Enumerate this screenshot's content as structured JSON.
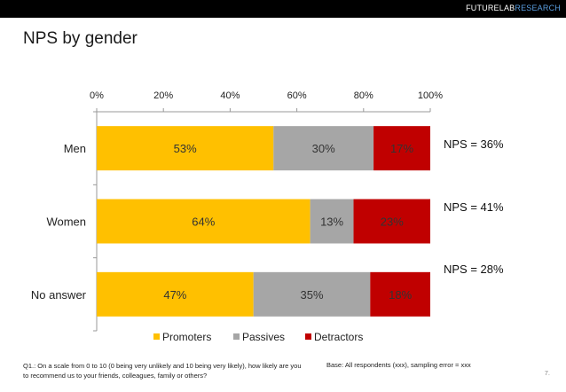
{
  "brand": {
    "part1": "FUTURELAB",
    "part2": "RESEARCH"
  },
  "title": "NPS by gender",
  "chart_data": {
    "type": "bar",
    "orientation": "horizontal",
    "stacked": true,
    "categories": [
      "Men",
      "Women",
      "No answer"
    ],
    "series": [
      {
        "name": "Promoters",
        "values": [
          53,
          64,
          47
        ],
        "labels": [
          "53%",
          "64%",
          "47%"
        ],
        "color": "#FFC000"
      },
      {
        "name": "Passives",
        "values": [
          30,
          13,
          35
        ],
        "labels": [
          "30%",
          "13%",
          "35%"
        ],
        "color": "#A6A6A6"
      },
      {
        "name": "Detractors",
        "values": [
          17,
          23,
          18
        ],
        "labels": [
          "17%",
          "23%",
          "18%"
        ],
        "color": "#C00000"
      }
    ],
    "ticks": [
      "0%",
      "20%",
      "40%",
      "60%",
      "80%",
      "100%"
    ],
    "xlim": [
      0,
      100
    ],
    "axis_position": "top",
    "legend_position": "bottom",
    "grid": false
  },
  "nps": [
    "NPS = 36%",
    "NPS = 41%",
    "NPS = 28%"
  ],
  "footnote": "Q1.: On a scale from 0 to 10 (0 being very unlikely and 10 being very likely), how likely are you to recommend us to your friends, colleagues, family or others?",
  "base": "Base: All respondents (xxx), sampling error = xxx",
  "page_number": "7."
}
